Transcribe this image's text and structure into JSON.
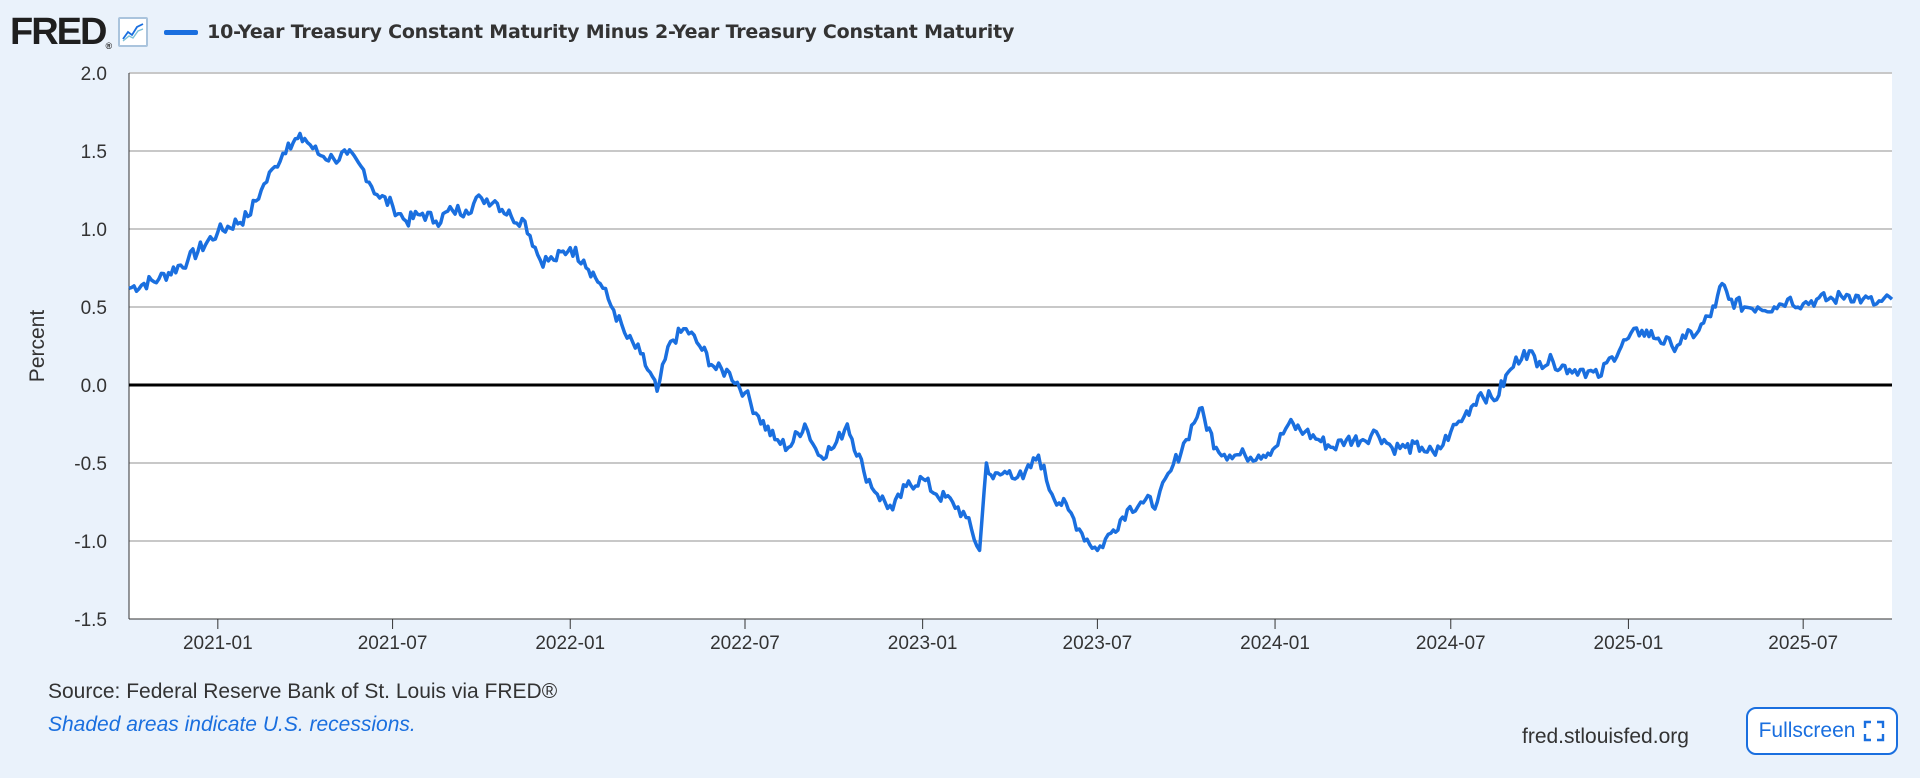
{
  "header": {
    "logo_text": "FRED",
    "logo_mark": "®",
    "graph_icon": "line-graph-icon",
    "series_label": "10-Year Treasury Constant Maturity Minus 2-Year Treasury Constant Maturity"
  },
  "colors": {
    "series": "#1a6fdf",
    "background": "#eaf2fb",
    "plot_background": "#ffffff",
    "grid": "#c8c8c8",
    "zero_line": "#000000"
  },
  "chart_data": {
    "type": "line",
    "title": "",
    "xlabel": "",
    "ylabel": "Percent",
    "ylim": [
      -1.5,
      2.0
    ],
    "yticks": [
      "2.0",
      "1.5",
      "1.0",
      "0.5",
      "0.0",
      "-0.5",
      "-1.0",
      "-1.5"
    ],
    "xlim": [
      "2020-10-01",
      "2025-10-01"
    ],
    "xticks": [
      "2021-01",
      "2021-07",
      "2022-01",
      "2022-07",
      "2023-01",
      "2023-07",
      "2024-01",
      "2024-07",
      "2025-01",
      "2025-07"
    ],
    "grid": true,
    "zero_line": true,
    "series": [
      {
        "name": "10-Year Treasury Constant Maturity Minus 2-Year Treasury Constant Maturity",
        "x": [
          "2020-10-01",
          "2020-11-01",
          "2020-12-01",
          "2021-01-01",
          "2021-02-01",
          "2021-02-15",
          "2021-03-01",
          "2021-03-15",
          "2021-04-01",
          "2021-04-15",
          "2021-05-01",
          "2021-05-15",
          "2021-06-01",
          "2021-06-15",
          "2021-07-01",
          "2021-07-15",
          "2021-08-01",
          "2021-08-15",
          "2021-09-01",
          "2021-09-15",
          "2021-10-01",
          "2021-10-15",
          "2021-11-01",
          "2021-11-15",
          "2021-12-01",
          "2021-12-15",
          "2022-01-01",
          "2022-01-15",
          "2022-02-01",
          "2022-02-15",
          "2022-03-01",
          "2022-03-15",
          "2022-04-01",
          "2022-04-15",
          "2022-05-01",
          "2022-05-15",
          "2022-06-01",
          "2022-06-15",
          "2022-07-01",
          "2022-07-15",
          "2022-08-01",
          "2022-08-15",
          "2022-09-01",
          "2022-09-15",
          "2022-10-01",
          "2022-10-15",
          "2022-11-01",
          "2022-11-15",
          "2022-12-01",
          "2022-12-15",
          "2023-01-01",
          "2023-01-15",
          "2023-02-01",
          "2023-02-15",
          "2023-03-01",
          "2023-03-08",
          "2023-03-15",
          "2023-04-01",
          "2023-04-15",
          "2023-05-01",
          "2023-05-15",
          "2023-06-01",
          "2023-06-15",
          "2023-07-01",
          "2023-07-15",
          "2023-08-01",
          "2023-08-15",
          "2023-09-01",
          "2023-09-15",
          "2023-10-01",
          "2023-10-15",
          "2023-11-01",
          "2023-11-15",
          "2023-12-01",
          "2023-12-15",
          "2024-01-01",
          "2024-01-15",
          "2024-02-01",
          "2024-02-15",
          "2024-03-01",
          "2024-03-15",
          "2024-04-01",
          "2024-04-15",
          "2024-05-01",
          "2024-05-15",
          "2024-06-01",
          "2024-06-15",
          "2024-07-01",
          "2024-07-15",
          "2024-08-01",
          "2024-08-15",
          "2024-09-01",
          "2024-09-15",
          "2024-10-01",
          "2024-10-15",
          "2024-11-01",
          "2024-11-15",
          "2024-12-01",
          "2024-12-15",
          "2025-01-01",
          "2025-01-15",
          "2025-02-01",
          "2025-02-15",
          "2025-03-01",
          "2025-03-15",
          "2025-04-01",
          "2025-04-08",
          "2025-04-15",
          "2025-05-01",
          "2025-05-15",
          "2025-06-01",
          "2025-06-15",
          "2025-07-01",
          "2025-07-15",
          "2025-08-01",
          "2025-08-15",
          "2025-09-01",
          "2025-09-15",
          "2025-10-01"
        ],
        "y": [
          0.62,
          0.68,
          0.8,
          0.98,
          1.08,
          1.25,
          1.4,
          1.55,
          1.58,
          1.48,
          1.45,
          1.48,
          1.38,
          1.22,
          1.15,
          1.05,
          1.1,
          1.05,
          1.12,
          1.12,
          1.2,
          1.18,
          1.08,
          1.05,
          0.8,
          0.8,
          0.88,
          0.8,
          0.65,
          0.48,
          0.3,
          0.2,
          -0.04,
          0.28,
          0.36,
          0.25,
          0.1,
          0.08,
          -0.05,
          -0.2,
          -0.35,
          -0.4,
          -0.25,
          -0.45,
          -0.4,
          -0.25,
          -0.55,
          -0.7,
          -0.8,
          -0.65,
          -0.6,
          -0.7,
          -0.75,
          -0.85,
          -1.06,
          -0.5,
          -0.6,
          -0.55,
          -0.6,
          -0.45,
          -0.7,
          -0.8,
          -0.95,
          -1.06,
          -0.95,
          -0.8,
          -0.75,
          -0.75,
          -0.55,
          -0.35,
          -0.15,
          -0.4,
          -0.45,
          -0.45,
          -0.45,
          -0.4,
          -0.25,
          -0.3,
          -0.35,
          -0.4,
          -0.35,
          -0.35,
          -0.3,
          -0.4,
          -0.4,
          -0.4,
          -0.45,
          -0.3,
          -0.2,
          -0.05,
          -0.1,
          0.1,
          0.22,
          0.15,
          0.15,
          0.1,
          0.1,
          0.05,
          0.18,
          0.3,
          0.35,
          0.3,
          0.25,
          0.3,
          0.35,
          0.5,
          0.65,
          0.55,
          0.5,
          0.5,
          0.5,
          0.55,
          0.52,
          0.55,
          0.55,
          0.58,
          0.55,
          0.52,
          0.55
        ]
      }
    ]
  },
  "footer": {
    "source": "Source: Federal Reserve Bank of St. Louis via FRED®",
    "note": "Shaded areas indicate U.S. recessions.",
    "site": "fred.stlouisfed.org",
    "fullscreen_label": "Fullscreen",
    "fullscreen_icon": "expand-icon"
  }
}
